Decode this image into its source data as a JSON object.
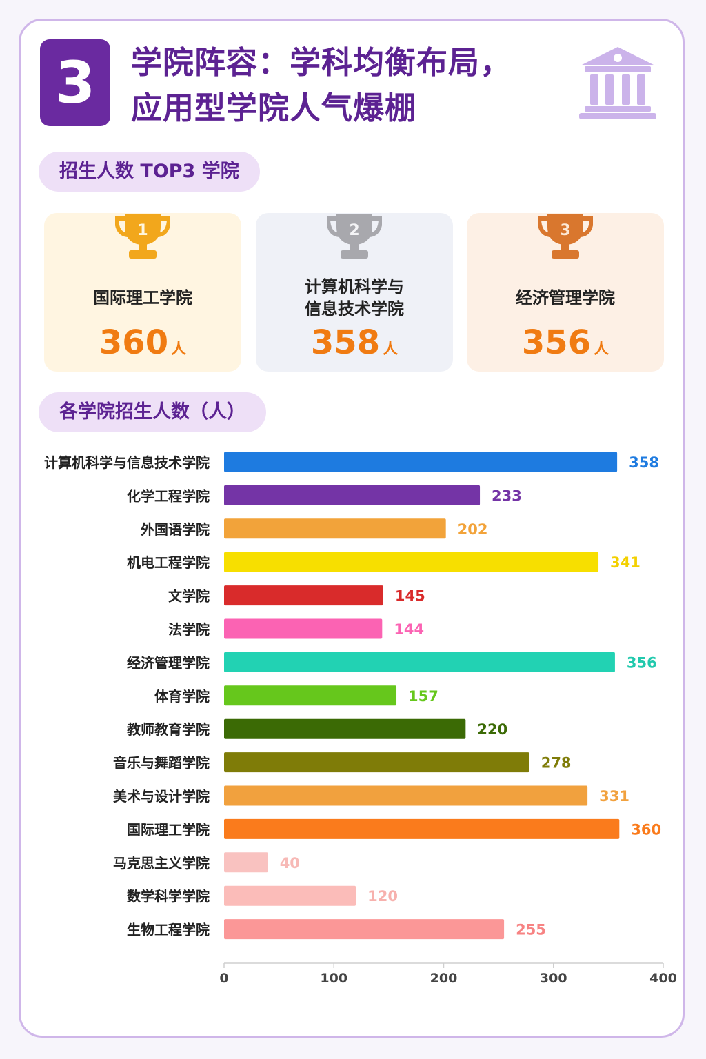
{
  "header": {
    "number": "3",
    "title_line1": "学院阵容：学科均衡布局，",
    "title_line2": "应用型学院人气爆棚",
    "icon": "building-icon"
  },
  "top3": {
    "heading": "招生人数 TOP3 学院",
    "unit": "人",
    "items": [
      {
        "rank": "1",
        "name_line1": "国际理工学院",
        "name_line2": "",
        "value": "360",
        "trophy_color": "#f2a71c",
        "bg": "#fff5e1"
      },
      {
        "rank": "2",
        "name_line1": "计算机科学与",
        "name_line2": "信息技术学院",
        "value": "358",
        "trophy_color": "#a8a8ad",
        "bg": "#eff1f7"
      },
      {
        "rank": "3",
        "name_line1": "经济管理学院",
        "name_line2": "",
        "value": "356",
        "trophy_color": "#d9772e",
        "bg": "#fdf0e5"
      }
    ]
  },
  "chart_section": {
    "heading": "各学院招生人数（人）"
  },
  "chart_data": {
    "type": "bar",
    "orientation": "horizontal",
    "categories": [
      "计算机科学与信息技术学院",
      "化学工程学院",
      "外国语学院",
      "机电工程学院",
      "文学院",
      "法学院",
      "经济管理学院",
      "体育学院",
      "教师教育学院",
      "音乐与舞蹈学院",
      "美术与设计学院",
      "国际理工学院",
      "马克思主义学院",
      "数学科学学院",
      "生物工程学院"
    ],
    "values": [
      358,
      233,
      202,
      341,
      145,
      144,
      356,
      157,
      220,
      278,
      331,
      360,
      40,
      120,
      255
    ],
    "colors": [
      "#1e7be0",
      "#7434a6",
      "#f2a33a",
      "#f7df00",
      "#d92b2b",
      "#fb63b3",
      "#22d2b3",
      "#66c71c",
      "#3b6a05",
      "#7f7c08",
      "#f1a13e",
      "#fa7b1c",
      "#f9c2c0",
      "#fbbcb9",
      "#fb9797"
    ],
    "label_colors": [
      "#1e7be0",
      "#7434a6",
      "#f2a33a",
      "#f3d000",
      "#d92b2b",
      "#fb63b3",
      "#22c9ad",
      "#66c71c",
      "#3b6a05",
      "#7f7c08",
      "#f1a13e",
      "#fa7b1c",
      "#f7b9b6",
      "#f7b1ad",
      "#f78383"
    ],
    "xlim": [
      0,
      400
    ],
    "xticks": [
      0,
      100,
      200,
      300,
      400
    ],
    "grid": false
  }
}
